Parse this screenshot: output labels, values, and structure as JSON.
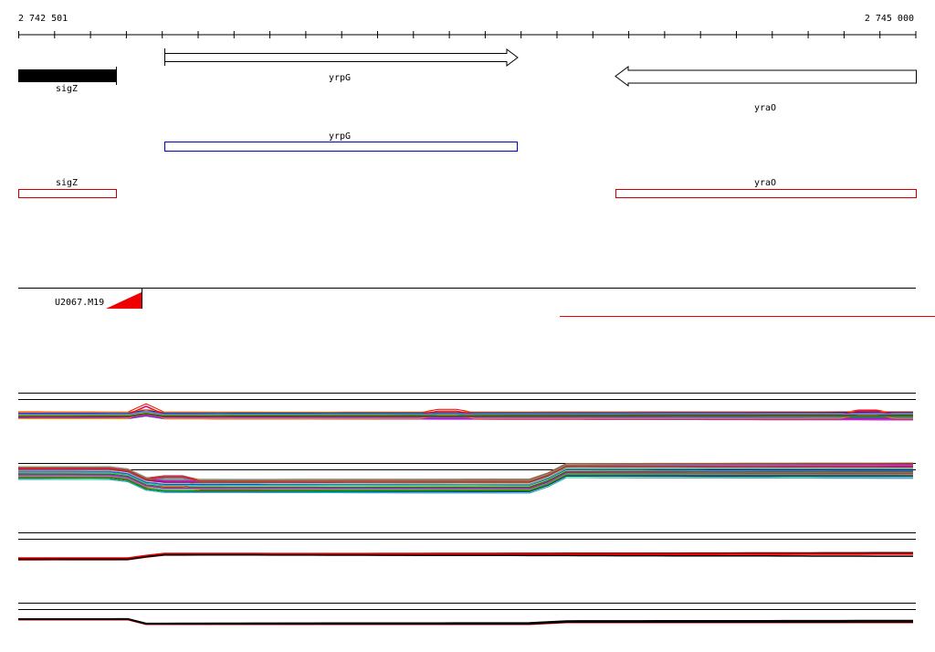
{
  "ruler": {
    "start_label": "2 742 501",
    "end_label": "2 745 000"
  },
  "genes": {
    "sigZ": "sigZ",
    "yrpG": "yrpG",
    "yraO": "yraO"
  },
  "features": {
    "yrpG": "yrpG",
    "sigZ": "sigZ",
    "yraO": "yraO"
  },
  "track": {
    "label": "U2067.M19"
  }
}
